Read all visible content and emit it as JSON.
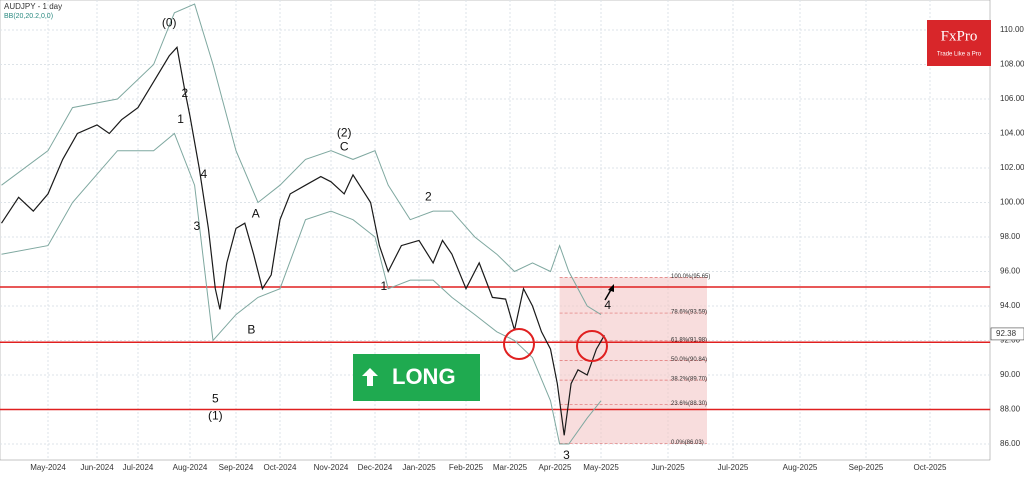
{
  "chart_data": {
    "type": "line",
    "title": "AUDJPY - 1 day",
    "subtitle": "BB(20,20.2,0,0)",
    "xlim": [
      -0.98,
      17.94
    ],
    "ylim": [
      85.07,
      111.74
    ],
    "xticks": [
      {
        "value": 0,
        "label": "May-2024"
      },
      {
        "value": 1,
        "label": "Jun-2024"
      },
      {
        "value": 2,
        "label": "Jul-2024"
      },
      {
        "value": 3,
        "label": "Aug-2024"
      },
      {
        "value": 4,
        "label": "Sep-2024"
      },
      {
        "value": 5,
        "label": "Oct-2024"
      },
      {
        "value": 6,
        "label": "Nov-2024"
      },
      {
        "value": 7,
        "label": "Dec-2024"
      },
      {
        "value": 8,
        "label": "Jan-2025"
      },
      {
        "value": 9,
        "label": "Feb-2025"
      },
      {
        "value": 10,
        "label": "Mar-2025"
      },
      {
        "value": 11,
        "label": "Apr-2025"
      },
      {
        "value": 12,
        "label": "May-2025"
      },
      {
        "value": 13,
        "label": "Jun-2025"
      },
      {
        "value": 14,
        "label": "Jul-2025"
      },
      {
        "value": 15,
        "label": "Aug-2025"
      },
      {
        "value": 16,
        "label": "Sep-2025"
      },
      {
        "value": 17,
        "label": "Oct-2025"
      }
    ],
    "yticks": [
      {
        "value": 86,
        "label": "86.00"
      },
      {
        "value": 88,
        "label": "88.00"
      },
      {
        "value": 90,
        "label": "90.00"
      },
      {
        "value": 92,
        "label": "92.00"
      },
      {
        "value": 94,
        "label": "94.00"
      },
      {
        "value": 96,
        "label": "96.00"
      },
      {
        "value": 98,
        "label": "98.00"
      },
      {
        "value": 100,
        "label": "100.00"
      },
      {
        "value": 102,
        "label": "102.00"
      },
      {
        "value": 104,
        "label": "104.00"
      },
      {
        "value": 106,
        "label": "106.00"
      },
      {
        "value": 108,
        "label": "108.00"
      },
      {
        "value": 110,
        "label": "110.00"
      }
    ],
    "grid": true,
    "x": [
      -0.95,
      -0.6,
      -0.3,
      0,
      0.3,
      0.6,
      1.0,
      1.3,
      1.6,
      2.0,
      2.3,
      2.6,
      2.75,
      2.9,
      3.0,
      3.2,
      3.4,
      3.55,
      3.65,
      3.8,
      4.0,
      4.2,
      4.4,
      4.6,
      4.8,
      5.0,
      5.2,
      5.5,
      5.8,
      6.0,
      6.3,
      6.5,
      6.7,
      6.9,
      7.1,
      7.3,
      7.6,
      8.0,
      8.3,
      8.5,
      8.7,
      9.0,
      9.3,
      9.6,
      9.9,
      10.1,
      10.3,
      10.5,
      10.7,
      10.9,
      11.05,
      11.2,
      11.35,
      11.5,
      11.7,
      11.9,
      12.05
    ],
    "series": [
      {
        "color": "#1a1a1a",
        "values": [
          98.8,
          100.3,
          99.5,
          100.5,
          102.5,
          104,
          104.5,
          104,
          104.8,
          105.5,
          107,
          108.5,
          109.0,
          106.5,
          105.0,
          102,
          98.5,
          95,
          93.8,
          96.5,
          98.5,
          98.8,
          97,
          95,
          95.8,
          99,
          100.5,
          101,
          101.5,
          101.2,
          100.5,
          101.6,
          100.8,
          100,
          97.5,
          96,
          97.5,
          97.8,
          96.5,
          97.8,
          97,
          95,
          96.5,
          94.5,
          94.4,
          92.6,
          95,
          94,
          92.5,
          91.5,
          89.5,
          86.5,
          89.5,
          90.3,
          90,
          91.5,
          92.3
        ]
      }
    ],
    "bands": [
      {
        "color": "#7fa8a0",
        "x": [
          -0.95,
          0,
          0.5,
          1.5,
          2.3,
          2.7,
          3.1,
          3.5,
          4.0,
          4.5,
          5.0,
          5.5,
          6.0,
          6.5,
          7.0,
          7.3,
          7.8,
          8.3,
          8.7,
          9.2,
          9.7,
          10.1,
          10.5,
          10.9,
          11.1,
          11.3,
          11.7,
          12.0
        ],
        "values": [
          101,
          103,
          105.5,
          106,
          108,
          111,
          111.5,
          108,
          103,
          100,
          101,
          102.5,
          103,
          102.5,
          103,
          101,
          99,
          99.5,
          99.5,
          98,
          97,
          96,
          96.5,
          96,
          97.5,
          96,
          94,
          93.5
        ]
      },
      {
        "color": "#7fa8a0",
        "x": [
          -0.95,
          0,
          0.5,
          1.5,
          2.3,
          2.7,
          3.1,
          3.5,
          4.0,
          4.5,
          5.0,
          5.5,
          6.0,
          6.5,
          7.0,
          7.3,
          7.8,
          8.3,
          8.7,
          9.2,
          9.7,
          10.1,
          10.5,
          10.9,
          11.1,
          11.3,
          11.7,
          12.0
        ],
        "values": [
          97,
          97.5,
          100,
          103,
          103,
          104,
          101,
          92,
          93.5,
          94.5,
          95,
          99,
          99.5,
          99,
          98,
          95,
          95.5,
          95.5,
          94.5,
          93.5,
          92.5,
          92,
          91,
          88.5,
          86,
          86,
          87.5,
          88.5
        ]
      }
    ],
    "levels": [
      95.1,
      91.9,
      88.0
    ],
    "level_color": "#e02020",
    "last_price": {
      "value": 92.38,
      "label": "92.38"
    },
    "fib_box": {
      "x": [
        11.1,
        13.6
      ],
      "color": "#f4c6c6"
    },
    "fib_levels": [
      {
        "value": 95.65,
        "label": "100.0%(95.65)"
      },
      {
        "value": 93.59,
        "label": "78.6%(93.59)"
      },
      {
        "value": 91.98,
        "label": "61.8%(91.98)"
      },
      {
        "value": 90.84,
        "label": "50.0%(90.84)"
      },
      {
        "value": 89.7,
        "label": "38.2%(89.70)"
      },
      {
        "value": 88.3,
        "label": "23.6%(88.30)"
      },
      {
        "value": 86.03,
        "label": "0.0%(86.03)"
      }
    ],
    "annotations": [
      {
        "text": "(0)",
        "x": 2.6,
        "y": 110.4
      },
      {
        "text": "2",
        "x": 2.9,
        "y": 106.3
      },
      {
        "text": "1",
        "x": 2.82,
        "y": 104.8
      },
      {
        "text": "4",
        "x": 3.3,
        "y": 101.6
      },
      {
        "text": "3",
        "x": 3.15,
        "y": 98.6
      },
      {
        "text": "A",
        "x": 4.45,
        "y": 99.3
      },
      {
        "text": "B",
        "x": 4.35,
        "y": 92.6
      },
      {
        "text": "5",
        "x": 3.55,
        "y": 88.6
      },
      {
        "text": "(1)",
        "x": 3.55,
        "y": 87.6
      },
      {
        "text": "(2)",
        "x": 6.3,
        "y": 104.0
      },
      {
        "text": "C",
        "x": 6.3,
        "y": 103.2
      },
      {
        "text": "2",
        "x": 8.2,
        "y": 100.3
      },
      {
        "text": "1",
        "x": 7.2,
        "y": 95.1
      },
      {
        "text": "3",
        "x": 11.25,
        "y": 85.3
      },
      {
        "text": "4",
        "x": 12.1,
        "y": 94.0
      }
    ],
    "button": "LONG",
    "logo": {
      "name": "FxPro",
      "tagline": "Trade Like a Pro"
    }
  }
}
